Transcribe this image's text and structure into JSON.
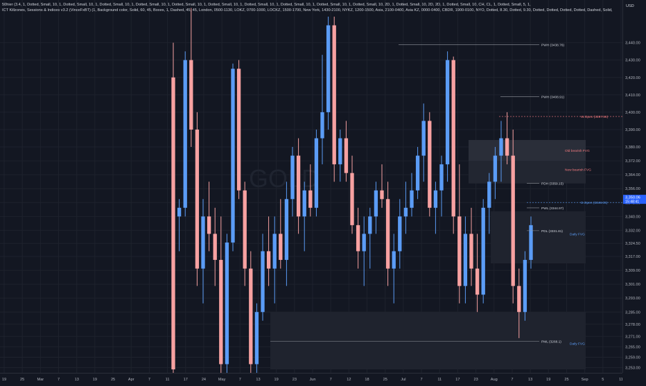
{
  "legend": {
    "line1": "50hier (3.4, 1, Dotted, Small, 10, 1, Dotted, Small, 10, 1, Dotted, Small, 10, 1, Dotted, Small, 10, 1, Dotted, Small, 10, 1, Dotted, Small, 10, 1, Dotted, Small, 10, 1, Dotted, Small, 10, 1, Dotted, Small, 10, 1, Dotted, Small, 10, 2D, 1, Dotted, Small, 10, 2D, 2D, 1, Dotted, Small, 10, CH, CL, 1, Dotted, Small, 5, 1,",
    "line2": "ICT Killzones, Sessions & Indices v3.2 (VinceFxBT) (1, Background color, Solid, 60, 45, Boxes, 1, Dashed, 45, 45, London, 0500-1130, LOKZ, 0700-1000, LOCKZ, 1500-1700, New York, 1430-2100, NYKZ, 1200-1500, Asia, 2100-0400, Asia KZ, 0000-0400, CBDR, 1900-0100, NYO, Dotted, 8.30, Dotted, 9.30, Dotted, Dotted, Dotted, Dotted, Dashed, Solid,"
  },
  "currency": "USD",
  "watermark": "GOLD",
  "colors": {
    "up": "#5b9cf6",
    "down": "#f7a1a1",
    "grid": "#1e222d",
    "text": "#b2b5be",
    "bearish_fvg_text": "#f77c80",
    "daily_fvg_text": "#5b9cf6",
    "current_price_bg": "#2962ff"
  },
  "current_price": {
    "value": "3,350.06",
    "countdown": "15:48:41"
  },
  "levels": [
    {
      "label": "PWH (3438.76)",
      "price": 3438.76
    },
    {
      "label": "PWH (3408.91)",
      "price": 3408.91
    },
    {
      "label": "W.Open (3397.56)",
      "price": 3397.56
    },
    {
      "label": "PDH (3359.15)",
      "price": 3359.15
    },
    {
      "label": "D.Open (3348.05)",
      "price": 3348.05
    },
    {
      "label": "PWL (3344.97)",
      "price": 3344.97
    },
    {
      "label": "PDL (3331.81)",
      "price": 3331.81
    },
    {
      "label": "PML (3268.1)",
      "price": 3268.1
    }
  ],
  "fvg_labels": [
    {
      "label": "Old bearish FVG",
      "price": 3378
    },
    {
      "label": "New bearish FVG",
      "price": 3367
    },
    {
      "label": "Daily FVG",
      "price": 3330
    },
    {
      "label": "Daily FVG",
      "price": 3267
    }
  ],
  "chart_data": {
    "type": "candlestick",
    "symbol_watermark": "GOLD",
    "y_ticks": [
      "3,440.00",
      "3,430.00",
      "3,420.00",
      "3,410.00",
      "3,400.00",
      "3,390.00",
      "3,380.00",
      "3,372.00",
      "3,364.00",
      "3,356.00",
      "3,348.00",
      "3,340.00",
      "3,332.00",
      "3,324.50",
      "3,317.00",
      "3,309.00",
      "3,301.00",
      "3,293.00",
      "3,285.00",
      "3,278.00",
      "3,271.00",
      "3,265.00",
      "3,259.00",
      "3,253.00"
    ],
    "x_ticks": [
      "19",
      "25",
      "Mar",
      "7",
      "13",
      "19",
      "25",
      "Apr",
      "7",
      "11",
      "17",
      "24",
      "May",
      "7",
      "13",
      "19",
      "23",
      "Jun",
      "7",
      "12",
      "18",
      "25",
      "Jul",
      "7",
      "11",
      "17",
      "23",
      "Aug",
      "7",
      "13",
      "19",
      "25",
      "Sep",
      "5",
      "11"
    ],
    "ylim": [
      3252,
      3455
    ],
    "candles": [
      [
        3420,
        3440,
        3250,
        3252
      ],
      [
        3340,
        3350,
        3320,
        3345
      ],
      [
        3345,
        3435,
        3340,
        3430
      ],
      [
        3430,
        3460,
        3380,
        3390
      ],
      [
        3390,
        3400,
        3300,
        3310
      ],
      [
        3310,
        3350,
        3290,
        3340
      ],
      [
        3340,
        3360,
        3320,
        3330
      ],
      [
        3330,
        3345,
        3300,
        3315
      ],
      [
        3315,
        3340,
        3250,
        3255
      ],
      [
        3255,
        3330,
        3250,
        3325
      ],
      [
        3325,
        3428,
        3320,
        3425
      ],
      [
        3425,
        3430,
        3350,
        3355
      ],
      [
        3355,
        3360,
        3300,
        3310
      ],
      [
        3310,
        3320,
        3250,
        3255
      ],
      [
        3255,
        3290,
        3245,
        3285
      ],
      [
        3285,
        3330,
        3280,
        3320
      ],
      [
        3320,
        3340,
        3300,
        3310
      ],
      [
        3310,
        3340,
        3290,
        3330
      ],
      [
        3330,
        3350,
        3310,
        3315
      ],
      [
        3315,
        3360,
        3300,
        3350
      ],
      [
        3350,
        3380,
        3340,
        3375
      ],
      [
        3375,
        3385,
        3330,
        3340
      ],
      [
        3340,
        3360,
        3320,
        3355
      ],
      [
        3355,
        3370,
        3340,
        3345
      ],
      [
        3345,
        3390,
        3340,
        3385
      ],
      [
        3385,
        3433,
        3370,
        3400
      ],
      [
        3400,
        3455,
        3390,
        3450
      ],
      [
        3450,
        3455,
        3360,
        3370
      ],
      [
        3370,
        3390,
        3360,
        3385
      ],
      [
        3385,
        3395,
        3360,
        3365
      ],
      [
        3365,
        3375,
        3330,
        3335
      ],
      [
        3335,
        3345,
        3310,
        3320
      ],
      [
        3320,
        3340,
        3300,
        3330
      ],
      [
        3330,
        3345,
        3310,
        3340
      ],
      [
        3340,
        3360,
        3330,
        3355
      ],
      [
        3355,
        3370,
        3345,
        3350
      ],
      [
        3350,
        3360,
        3300,
        3310
      ],
      [
        3310,
        3330,
        3290,
        3320
      ],
      [
        3320,
        3350,
        3310,
        3340
      ],
      [
        3340,
        3360,
        3330,
        3345
      ],
      [
        3345,
        3365,
        3340,
        3355
      ],
      [
        3355,
        3380,
        3350,
        3375
      ],
      [
        3375,
        3405,
        3360,
        3395
      ],
      [
        3395,
        3400,
        3340,
        3345
      ],
      [
        3345,
        3360,
        3330,
        3355
      ],
      [
        3355,
        3375,
        3340,
        3370
      ],
      [
        3370,
        3435,
        3360,
        3430
      ],
      [
        3430,
        3432,
        3330,
        3340
      ],
      [
        3340,
        3370,
        3290,
        3300
      ],
      [
        3300,
        3340,
        3290,
        3330
      ],
      [
        3330,
        3345,
        3300,
        3310
      ],
      [
        3310,
        3330,
        3285,
        3295
      ],
      [
        3295,
        3350,
        3290,
        3345
      ],
      [
        3345,
        3365,
        3330,
        3360
      ],
      [
        3360,
        3380,
        3350,
        3375
      ],
      [
        3375,
        3395,
        3360,
        3385
      ],
      [
        3385,
        3400,
        3370,
        3375
      ],
      [
        3375,
        3390,
        3290,
        3300
      ],
      [
        3300,
        3310,
        3270,
        3285
      ],
      [
        3285,
        3320,
        3280,
        3315
      ],
      [
        3315,
        3340,
        3310,
        3335
      ]
    ]
  }
}
